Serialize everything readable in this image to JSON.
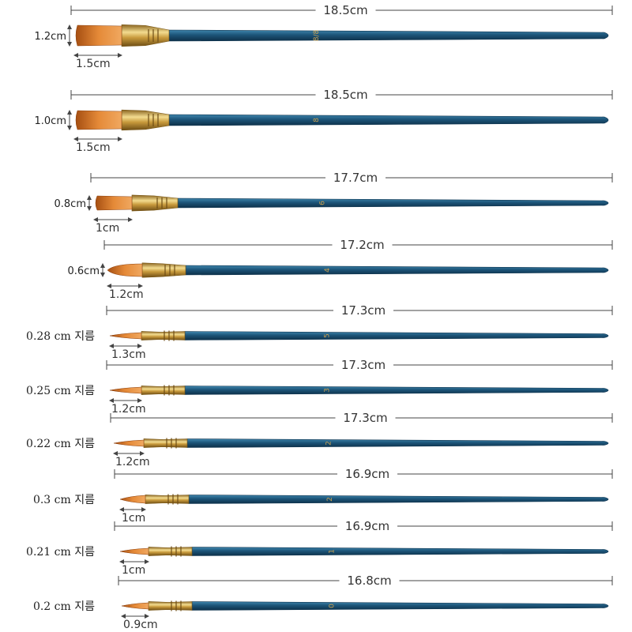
{
  "colors": {
    "handle": "#1c5478",
    "handle_dark": "#0f3550",
    "ferrule": "#c89a3c",
    "ferrule_light": "#f3dc90",
    "bristle": "#c86a1e",
    "bristle_light": "#f0a860",
    "dim_line": "#444444"
  },
  "brushes": [
    {
      "total_length": "18.5cm",
      "tip_length": "1.5cm",
      "width_label": "1.2cm",
      "shape": "flat",
      "handle_number": "8/8"
    },
    {
      "total_length": "18.5cm",
      "tip_length": "1.5cm",
      "width_label": "1.0cm",
      "shape": "flat",
      "handle_number": "8"
    },
    {
      "total_length": "17.7cm",
      "tip_length": "1cm",
      "width_label": "0.8cm",
      "shape": "flat",
      "handle_number": "6"
    },
    {
      "total_length": "17.2cm",
      "tip_length": "1.2cm",
      "width_label": "0.6cm",
      "shape": "filbert",
      "handle_number": "4"
    },
    {
      "total_length": "17.3cm",
      "tip_length": "1.3cm",
      "width_label": "0.28 cm 지름",
      "shape": "round",
      "handle_number": "5"
    },
    {
      "total_length": "17.3cm",
      "tip_length": "1.2cm",
      "width_label": "0.25 cm 지름",
      "shape": "round",
      "handle_number": "3"
    },
    {
      "total_length": "17.3cm",
      "tip_length": "1.2cm",
      "width_label": "0.22 cm 지름",
      "shape": "round",
      "handle_number": "2"
    },
    {
      "total_length": "16.9cm",
      "tip_length": "1cm",
      "width_label": "0.3 cm 지름",
      "shape": "round",
      "handle_number": "2"
    },
    {
      "total_length": "16.9cm",
      "tip_length": "1cm",
      "width_label": "0.21 cm 지름",
      "shape": "round",
      "handle_number": "1"
    },
    {
      "total_length": "16.8cm",
      "tip_length": "0.9cm",
      "width_label": "0.2 cm 지름",
      "shape": "round",
      "handle_number": "0"
    }
  ]
}
